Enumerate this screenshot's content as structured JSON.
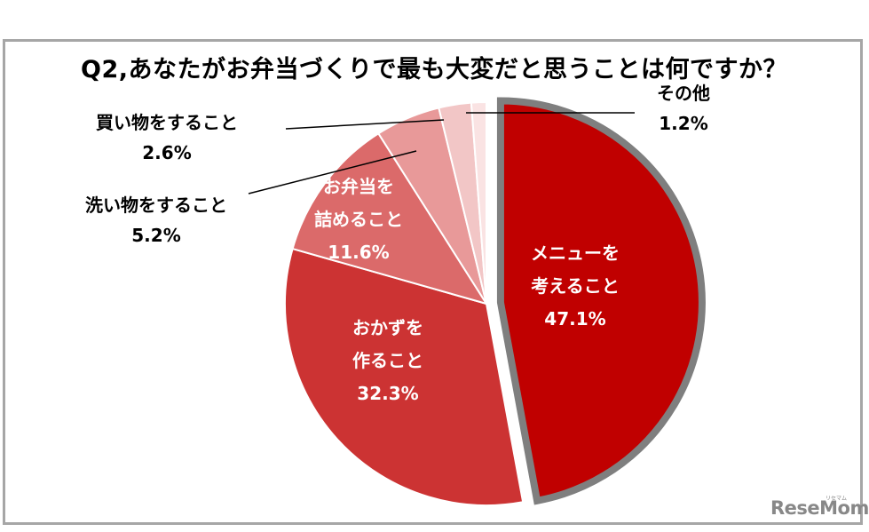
{
  "logo_text": "ReseMom",
  "logo_ruby": "リセマム",
  "chart_data": {
    "type": "pie",
    "title": "Q2,あなたがお弁当づくりで最も大変だと思うことは何ですか？",
    "start_angle_deg": 0,
    "direction": "clockwise",
    "slices": [
      {
        "lines": [
          "メニューを",
          "考えること"
        ],
        "value": 47.1,
        "value_label": "47.1%",
        "color": "#c00000",
        "exploded": true,
        "highlight_border": "#7f7f7f"
      },
      {
        "lines": [
          "おかずを",
          "作ること"
        ],
        "value": 32.3,
        "value_label": "32.3%",
        "color": "#cc3333"
      },
      {
        "lines": [
          "お弁当を",
          "詰めること"
        ],
        "value": 11.6,
        "value_label": "11.6%",
        "color": "#db6a6a"
      },
      {
        "lines": [
          "洗い物をすること"
        ],
        "value": 5.2,
        "value_label": "5.2%",
        "color": "#e89999"
      },
      {
        "lines": [
          "買い物をすること"
        ],
        "value": 2.6,
        "value_label": "2.6%",
        "color": "#f2c6c6"
      },
      {
        "lines": [
          "その他"
        ],
        "value": 1.2,
        "value_label": "1.2%",
        "color": "#fae3e3"
      }
    ]
  }
}
